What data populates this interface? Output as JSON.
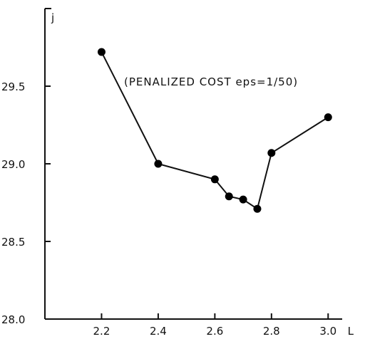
{
  "chart_data": {
    "type": "line",
    "title": "",
    "xlabel": "L",
    "ylabel": "j",
    "annotation": "(PENALIZED COST eps=1/50)",
    "xlim": [
      2.0,
      3.1
    ],
    "ylim": [
      28.0,
      30.0
    ],
    "x_ticks": [
      "2.2",
      "2.4",
      "2.6",
      "2.8",
      "3.0"
    ],
    "y_ticks": [
      "28.0",
      "28.5",
      "29.0",
      "29.5"
    ],
    "grid": false,
    "series": [
      {
        "x": [
          2.2,
          2.4,
          2.6,
          2.65,
          2.7,
          2.75,
          2.8,
          3.0
        ],
        "y": [
          29.72,
          29.0,
          28.9,
          28.79,
          28.77,
          28.71,
          29.07,
          29.3
        ]
      }
    ]
  }
}
